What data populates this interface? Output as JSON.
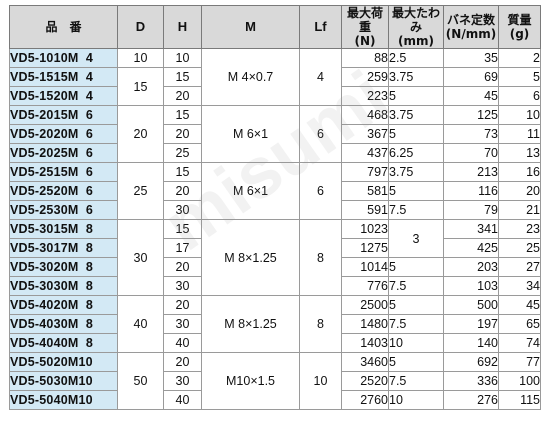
{
  "headers": {
    "part": "品　番",
    "d": "D",
    "h": "H",
    "m": "M",
    "lf": "Lf",
    "maxload": "最大荷重",
    "maxload_unit": "(N)",
    "maxdefl": "最大たわみ",
    "maxdefl_unit": "(mm)",
    "spring": "バネ定数",
    "spring_unit": "(N/mm)",
    "mass": "質量",
    "mass_unit": "(g)"
  },
  "groups": [
    {
      "d": "10",
      "m": "M 4×0.7",
      "lf": "4"
    },
    {
      "d": "15"
    },
    {
      "d": "20",
      "m": "M 6×1",
      "lf": "6"
    },
    {
      "d": "25",
      "m": "M 6×1",
      "lf": "6"
    },
    {
      "d": "30",
      "m": "M 8×1.25",
      "lf": "8"
    },
    {
      "d": "40",
      "m": "M 8×1.25",
      "lf": "8"
    },
    {
      "d": "50",
      "m": "M10×1.5",
      "lf": "10"
    }
  ],
  "rows": [
    {
      "part": "VD5-1010M  4",
      "h": "10",
      "load": "88",
      "defl": "2.5",
      "k": "35",
      "mass": "2"
    },
    {
      "part": "VD5-1515M  4",
      "h": "15",
      "load": "259",
      "defl": "3.75",
      "k": "69",
      "mass": "5"
    },
    {
      "part": "VD5-1520M  4",
      "h": "20",
      "load": "223",
      "defl": "5",
      "k": "45",
      "mass": "6"
    },
    {
      "part": "VD5-2015M  6",
      "h": "15",
      "load": "468",
      "defl": "3.75",
      "k": "125",
      "mass": "10"
    },
    {
      "part": "VD5-2020M  6",
      "h": "20",
      "load": "367",
      "defl": "5",
      "k": "73",
      "mass": "11"
    },
    {
      "part": "VD5-2025M  6",
      "h": "25",
      "load": "437",
      "defl": "6.25",
      "k": "70",
      "mass": "13"
    },
    {
      "part": "VD5-2515M  6",
      "h": "15",
      "load": "797",
      "defl": "3.75",
      "k": "213",
      "mass": "16"
    },
    {
      "part": "VD5-2520M  6",
      "h": "20",
      "load": "581",
      "defl": "5",
      "k": "116",
      "mass": "20"
    },
    {
      "part": "VD5-2530M  6",
      "h": "30",
      "load": "591",
      "defl": "7.5",
      "k": "79",
      "mass": "21"
    },
    {
      "part": "VD5-3015M  8",
      "h": "15",
      "load": "1023",
      "defl": "3",
      "k": "341",
      "mass": "23"
    },
    {
      "part": "VD5-3017M  8",
      "h": "17",
      "load": "1275",
      "defl": "",
      "k": "425",
      "mass": "25"
    },
    {
      "part": "VD5-3020M  8",
      "h": "20",
      "load": "1014",
      "defl": "5",
      "k": "203",
      "mass": "27"
    },
    {
      "part": "VD5-3030M  8",
      "h": "30",
      "load": "776",
      "defl": "7.5",
      "k": "103",
      "mass": "34"
    },
    {
      "part": "VD5-4020M  8",
      "h": "20",
      "load": "2500",
      "defl": "5",
      "k": "500",
      "mass": "45"
    },
    {
      "part": "VD5-4030M  8",
      "h": "30",
      "load": "1480",
      "defl": "7.5",
      "k": "197",
      "mass": "65"
    },
    {
      "part": "VD5-4040M  8",
      "h": "40",
      "load": "1403",
      "defl": "10",
      "k": "140",
      "mass": "74"
    },
    {
      "part": "VD5-5020M10",
      "h": "20",
      "load": "3460",
      "defl": "5",
      "k": "692",
      "mass": "77"
    },
    {
      "part": "VD5-5030M10",
      "h": "30",
      "load": "2520",
      "defl": "7.5",
      "k": "336",
      "mass": "100"
    },
    {
      "part": "VD5-5040M10",
      "h": "40",
      "load": "2760",
      "defl": "10",
      "k": "276",
      "mass": "115"
    }
  ],
  "watermark": "misumi"
}
